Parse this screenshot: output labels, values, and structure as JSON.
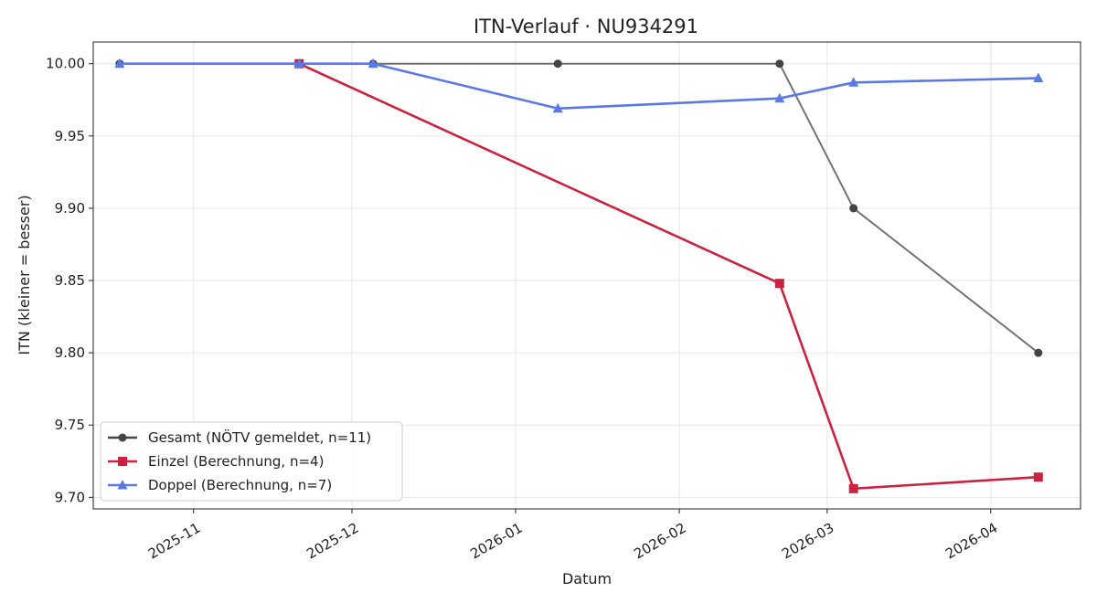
{
  "chart_data": {
    "type": "line",
    "title": "ITN-Verlauf · NU934291",
    "xlabel": "Datum",
    "ylabel": "ITN  (kleiner = besser)",
    "xlim": [
      "2025-10-13",
      "2026-04-18"
    ],
    "ylim": [
      9.692,
      10.015
    ],
    "grid": true,
    "legend_position": "lower-left",
    "x_ticks": [
      {
        "date": "2025-11-01",
        "label": "2025-11"
      },
      {
        "date": "2025-12-01",
        "label": "2025-12"
      },
      {
        "date": "2026-01-01",
        "label": "2026-01"
      },
      {
        "date": "2026-02-01",
        "label": "2026-02"
      },
      {
        "date": "2026-03-01",
        "label": "2026-03"
      },
      {
        "date": "2026-04-01",
        "label": "2026-04"
      }
    ],
    "y_ticks": [
      {
        "value": 9.7,
        "label": "9.70"
      },
      {
        "value": 9.75,
        "label": "9.75"
      },
      {
        "value": 9.8,
        "label": "9.80"
      },
      {
        "value": 9.85,
        "label": "9.85"
      },
      {
        "value": 9.9,
        "label": "9.90"
      },
      {
        "value": 9.95,
        "label": "9.95"
      },
      {
        "value": 10.0,
        "label": "10.00"
      }
    ],
    "series": [
      {
        "name": "Gesamt (NÖTV gemeldet, n=11)",
        "color": "#444444",
        "marker": "circle",
        "points": [
          {
            "x": "2025-10-18",
            "y": 10.0
          },
          {
            "x": "2025-11-21",
            "y": 10.0
          },
          {
            "x": "2025-12-05",
            "y": 10.0
          },
          {
            "x": "2026-01-09",
            "y": 10.0
          },
          {
            "x": "2026-02-20",
            "y": 10.0
          },
          {
            "x": "2026-03-06",
            "y": 9.9
          },
          {
            "x": "2026-04-10",
            "y": 9.8
          }
        ]
      },
      {
        "name": "Einzel (Berechnung, n=4)",
        "color": "#c9233f",
        "marker": "square",
        "points": [
          {
            "x": "2025-11-21",
            "y": 10.0
          },
          {
            "x": "2026-02-20",
            "y": 9.848
          },
          {
            "x": "2026-03-06",
            "y": 9.706
          },
          {
            "x": "2026-04-10",
            "y": 9.714
          }
        ]
      },
      {
        "name": "Doppel (Berechnung, n=7)",
        "color": "#5a78e6",
        "marker": "triangle",
        "points": [
          {
            "x": "2025-10-18",
            "y": 10.0
          },
          {
            "x": "2025-11-21",
            "y": 10.0
          },
          {
            "x": "2025-12-05",
            "y": 10.0
          },
          {
            "x": "2026-01-09",
            "y": 9.969
          },
          {
            "x": "2026-02-20",
            "y": 9.976
          },
          {
            "x": "2026-03-06",
            "y": 9.987
          },
          {
            "x": "2026-04-10",
            "y": 9.99
          }
        ]
      }
    ]
  }
}
